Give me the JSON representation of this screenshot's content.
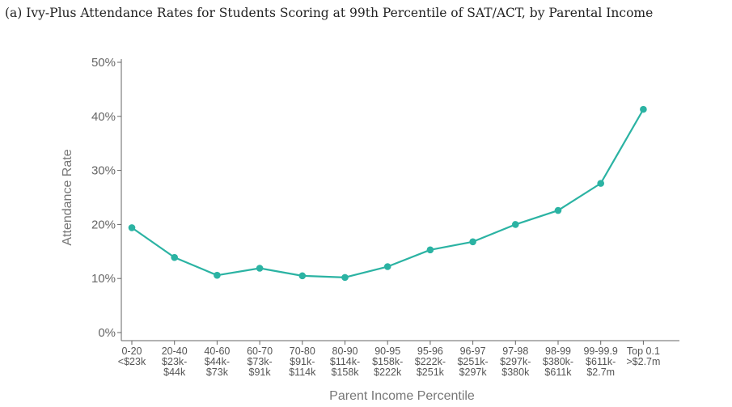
{
  "chart_data": {
    "type": "line",
    "title": "(a) Ivy-Plus Attendance Rates for Students Scoring at 99th Percentile of SAT/ACT, by Parental Income",
    "xlabel": "Parent Income Percentile",
    "ylabel": "Attendance Rate",
    "ylim": [
      0,
      50
    ],
    "yticks": [
      {
        "value": 0,
        "label": "0%"
      },
      {
        "value": 10,
        "label": "10%"
      },
      {
        "value": 20,
        "label": "20%"
      },
      {
        "value": 30,
        "label": "30%"
      },
      {
        "value": 40,
        "label": "40%"
      },
      {
        "value": 50,
        "label": "50%"
      }
    ],
    "categories": [
      {
        "percentile": "0-20",
        "income": [
          "<$23k"
        ]
      },
      {
        "percentile": "20-40",
        "income": [
          "$23k-",
          "$44k"
        ]
      },
      {
        "percentile": "40-60",
        "income": [
          "$44k-",
          "$73k"
        ]
      },
      {
        "percentile": "60-70",
        "income": [
          "$73k-",
          "$91k"
        ]
      },
      {
        "percentile": "70-80",
        "income": [
          "$91k-",
          "$114k"
        ]
      },
      {
        "percentile": "80-90",
        "income": [
          "$114k-",
          "$158k"
        ]
      },
      {
        "percentile": "90-95",
        "income": [
          "$158k-",
          "$222k"
        ]
      },
      {
        "percentile": "95-96",
        "income": [
          "$222k-",
          "$251k"
        ]
      },
      {
        "percentile": "96-97",
        "income": [
          "$251k-",
          "$297k"
        ]
      },
      {
        "percentile": "97-98",
        "income": [
          "$297k-",
          "$380k"
        ]
      },
      {
        "percentile": "98-99",
        "income": [
          "$380k-",
          "$611k"
        ]
      },
      {
        "percentile": "99-99.9",
        "income": [
          "$611k-",
          "$2.7m"
        ]
      },
      {
        "percentile": "Top 0.1",
        "income": [
          ">$2.7m"
        ]
      }
    ],
    "series": [
      {
        "name": "Attendance Rate",
        "color": "#2bb3a3",
        "values": [
          19.4,
          13.9,
          10.6,
          11.9,
          10.5,
          10.2,
          12.2,
          15.3,
          16.8,
          20.0,
          22.6,
          27.6,
          41.3
        ]
      }
    ]
  }
}
